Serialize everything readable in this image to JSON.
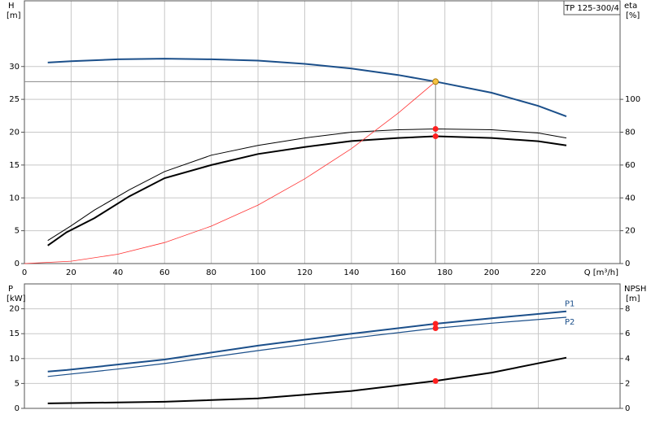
{
  "chart_data": [
    {
      "type": "line",
      "title": "TP 125-300/4",
      "ylabel": "H",
      "yunit": "[m]",
      "y2label": "eta",
      "y2unit": "[%]",
      "xlabel": "Q [m³/h]",
      "xlim": [
        0,
        255
      ],
      "xticks": [
        0,
        20,
        40,
        60,
        80,
        100,
        120,
        140,
        160,
        180,
        200,
        220
      ],
      "ylim": [
        0,
        40
      ],
      "yticks": [
        0,
        5,
        10,
        15,
        20,
        25,
        30
      ],
      "y2lim": [
        0,
        160
      ],
      "y2ticks": [
        0,
        20,
        40,
        60,
        80,
        100
      ],
      "grid": true,
      "show_xtick_labels": true,
      "series": [
        {
          "color": "#1b4f8a",
          "line_width": 2,
          "x": [
            10,
            20,
            40,
            60,
            80,
            100,
            120,
            140,
            160,
            176,
            200,
            220,
            232
          ],
          "values": [
            30.6,
            30.8,
            31.1,
            31.2,
            31.1,
            30.9,
            30.4,
            29.7,
            28.7,
            27.7,
            26.0,
            24.0,
            22.4
          ]
        },
        {
          "color": "#000000",
          "line_width": 1,
          "axis": "y2",
          "x": [
            10,
            20,
            30,
            45,
            60,
            80,
            100,
            120,
            140,
            160,
            176,
            200,
            220,
            232
          ],
          "values": [
            14,
            23,
            32.6,
            45,
            56,
            66,
            72,
            76.5,
            80,
            81.5,
            82,
            81.5,
            79.5,
            76.5
          ]
        },
        {
          "color": "#000000",
          "line_width": 2,
          "axis": "y2",
          "x": [
            10,
            18,
            30,
            45,
            60,
            80,
            100,
            120,
            140,
            160,
            176,
            200,
            220,
            232
          ],
          "values": [
            11,
            19,
            27.7,
            41,
            52,
            60,
            66.7,
            71,
            74.6,
            76.5,
            77.5,
            76.5,
            74.5,
            72
          ]
        },
        {
          "color": "#ff3333",
          "line_width": 0.8,
          "x": [
            0,
            20,
            40,
            60,
            80,
            100,
            120,
            140,
            160,
            176
          ],
          "values": [
            0,
            0.36,
            1.43,
            3.2,
            5.7,
            8.9,
            12.9,
            17.5,
            22.9,
            27.7
          ]
        }
      ],
      "points": [
        {
          "x": 176,
          "y": 27.7,
          "color": "#f5c242",
          "crosshair": true
        },
        {
          "x": 176,
          "y": 82,
          "axis": "y2",
          "color": "#ff2020"
        },
        {
          "x": 176,
          "y": 77.5,
          "axis": "y2",
          "color": "#ff2020"
        }
      ]
    },
    {
      "type": "line",
      "ylabel": "P",
      "yunit": "[kW]",
      "y2label": "NPSH",
      "y2unit": "[m]",
      "xlim": [
        0,
        255
      ],
      "xticks": [
        0,
        20,
        40,
        60,
        80,
        100,
        120,
        140,
        160,
        180,
        200,
        220
      ],
      "ylim": [
        0,
        25
      ],
      "yticks": [
        0,
        5,
        10,
        15,
        20
      ],
      "y2lim": [
        0,
        10
      ],
      "y2ticks": [
        0,
        2,
        4,
        6,
        8
      ],
      "grid": true,
      "show_xtick_labels": false,
      "series": [
        {
          "name": "P1",
          "color": "#1b4f8a",
          "line_width": 2,
          "x": [
            10,
            18,
            60,
            100,
            140,
            176,
            200,
            232
          ],
          "values": [
            7.4,
            7.7,
            9.8,
            12.6,
            15,
            17,
            18.1,
            19.5
          ]
        },
        {
          "name": "P2",
          "color": "#1b4f8a",
          "line_width": 1.2,
          "x": [
            10,
            40,
            60,
            100,
            140,
            176,
            200,
            232
          ],
          "values": [
            6.4,
            7.9,
            9,
            11.6,
            14.1,
            16.1,
            17.1,
            18.3
          ]
        },
        {
          "color": "#000000",
          "line_width": 2,
          "axis": "y2",
          "x": [
            10,
            60,
            100,
            140,
            176,
            200,
            232
          ],
          "values": [
            0.4,
            0.53,
            0.8,
            1.4,
            2.2,
            2.87,
            4.07
          ]
        }
      ],
      "points": [
        {
          "x": 176,
          "y": 17,
          "color": "#ff2020"
        },
        {
          "x": 176,
          "y": 16.1,
          "color": "#ff2020"
        },
        {
          "x": 176,
          "y": 2.2,
          "axis": "y2",
          "color": "#ff2020"
        }
      ]
    }
  ]
}
